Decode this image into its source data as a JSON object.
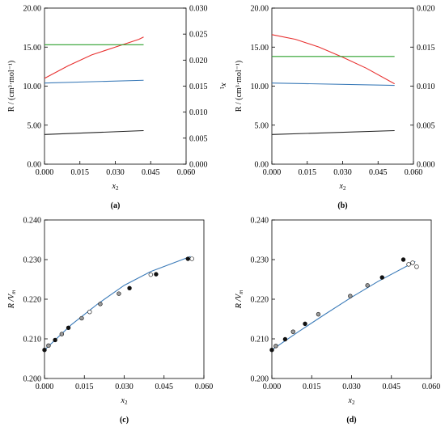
{
  "chart_data": [
    {
      "type": "line",
      "panel_label": "(a)",
      "xlabel_main": "x",
      "xlabel_sub": "2",
      "ylabel": "R / (cm³·mol⁻¹)",
      "y2label_main": "x",
      "y2label_sub": "1",
      "xlim": [
        0.0,
        0.06
      ],
      "ylim": [
        0.0,
        20.0
      ],
      "y2lim": [
        0.0,
        0.03
      ],
      "xticks": [
        "0.000",
        "0.015",
        "0.030",
        "0.045",
        "0.060"
      ],
      "yticks": [
        "0.00",
        "5.00",
        "10.00",
        "15.00",
        "20.00"
      ],
      "y2ticks": [
        "0.000",
        "0.005",
        "0.010",
        "0.015",
        "0.020",
        "0.025",
        "0.030"
      ],
      "series": [
        {
          "color": "#e8302f",
          "axis": "left",
          "x": [
            0.0,
            0.01,
            0.02,
            0.03,
            0.04,
            0.042
          ],
          "y": [
            11.0,
            12.6,
            14.0,
            15.0,
            16.0,
            16.3
          ]
        },
        {
          "color": "#2ca02c",
          "axis": "left",
          "x": [
            0.0,
            0.042
          ],
          "y": [
            15.3,
            15.3
          ]
        },
        {
          "color": "#3a7ab8",
          "axis": "left",
          "x": [
            0.0,
            0.042
          ],
          "y": [
            10.4,
            10.75
          ]
        },
        {
          "color": "#222222",
          "axis": "left",
          "x": [
            0.0,
            0.042
          ],
          "y": [
            3.8,
            4.3
          ]
        }
      ]
    },
    {
      "type": "line",
      "panel_label": "(b)",
      "xlabel_main": "x",
      "xlabel_sub": "2",
      "ylabel": "R / (cm³·mol⁻¹)",
      "y2label_main": "x",
      "y2label_sub": "1",
      "xlim": [
        0.0,
        0.06
      ],
      "ylim": [
        0.0,
        20.0
      ],
      "y2lim": [
        0.0,
        0.02
      ],
      "xticks": [
        "0.000",
        "0.015",
        "0.030",
        "0.045",
        "0.060"
      ],
      "yticks": [
        "0.00",
        "5.00",
        "10.00",
        "15.00",
        "20.00"
      ],
      "y2ticks": [
        "0.000",
        "0.005",
        "0.010",
        "0.015",
        "0.020"
      ],
      "series": [
        {
          "color": "#e8302f",
          "axis": "left",
          "x": [
            0.0,
            0.01,
            0.02,
            0.03,
            0.04,
            0.052
          ],
          "y": [
            16.6,
            16.0,
            15.0,
            13.7,
            12.3,
            10.3
          ]
        },
        {
          "color": "#2ca02c",
          "axis": "left",
          "x": [
            0.0,
            0.052
          ],
          "y": [
            13.8,
            13.8
          ]
        },
        {
          "color": "#3a7ab8",
          "axis": "left",
          "x": [
            0.0,
            0.052
          ],
          "y": [
            10.4,
            10.1
          ]
        },
        {
          "color": "#222222",
          "axis": "left",
          "x": [
            0.0,
            0.052
          ],
          "y": [
            3.8,
            4.3
          ]
        }
      ]
    },
    {
      "type": "scatter",
      "panel_label": "(c)",
      "xlabel_main": "x",
      "xlabel_sub": "2",
      "ylabel_main": "R /V",
      "ylabel_sub": "m",
      "xlim": [
        0.0,
        0.06
      ],
      "ylim": [
        0.2,
        0.24
      ],
      "xticks": [
        "0.000",
        "0.015",
        "0.030",
        "0.045",
        "0.060"
      ],
      "yticks": [
        "0.200",
        "0.210",
        "0.220",
        "0.230",
        "0.240"
      ],
      "fit_line": {
        "color": "#3a7ab8",
        "x": [
          0.0,
          0.01,
          0.02,
          0.03,
          0.04,
          0.055
        ],
        "y": [
          0.2072,
          0.2135,
          0.2188,
          0.2235,
          0.227,
          0.2308
        ]
      },
      "points": [
        {
          "x": 0.0,
          "y": 0.2072,
          "style": "filled"
        },
        {
          "x": 0.0015,
          "y": 0.2083,
          "style": "half"
        },
        {
          "x": 0.004,
          "y": 0.2097,
          "style": "filled"
        },
        {
          "x": 0.0065,
          "y": 0.2112,
          "style": "half"
        },
        {
          "x": 0.009,
          "y": 0.2128,
          "style": "filled"
        },
        {
          "x": 0.014,
          "y": 0.2152,
          "style": "half"
        },
        {
          "x": 0.017,
          "y": 0.2168,
          "style": "open"
        },
        {
          "x": 0.021,
          "y": 0.2188,
          "style": "half"
        },
        {
          "x": 0.028,
          "y": 0.2214,
          "style": "half"
        },
        {
          "x": 0.032,
          "y": 0.2228,
          "style": "filled"
        },
        {
          "x": 0.042,
          "y": 0.2263,
          "style": "filled"
        },
        {
          "x": 0.04,
          "y": 0.2262,
          "style": "open"
        },
        {
          "x": 0.054,
          "y": 0.2302,
          "style": "filled"
        },
        {
          "x": 0.0555,
          "y": 0.2302,
          "style": "open"
        }
      ]
    },
    {
      "type": "scatter",
      "panel_label": "(d)",
      "xlabel_main": "x",
      "xlabel_sub": "2",
      "ylabel_main": "R /V",
      "ylabel_sub": "m",
      "xlim": [
        0.0,
        0.06
      ],
      "ylim": [
        0.2,
        0.24
      ],
      "xticks": [
        "0.000",
        "0.015",
        "0.030",
        "0.045",
        "0.060"
      ],
      "yticks": [
        "0.200",
        "0.210",
        "0.220",
        "0.230",
        "0.240"
      ],
      "fit_line": {
        "color": "#3a7ab8",
        "x": [
          0.0,
          0.01,
          0.02,
          0.03,
          0.04,
          0.054
        ],
        "y": [
          0.2072,
          0.2118,
          0.2162,
          0.2205,
          0.2245,
          0.2295
        ]
      },
      "points": [
        {
          "x": 0.0,
          "y": 0.2072,
          "style": "filled"
        },
        {
          "x": 0.0015,
          "y": 0.2082,
          "style": "half"
        },
        {
          "x": 0.005,
          "y": 0.2099,
          "style": "filled"
        },
        {
          "x": 0.008,
          "y": 0.2118,
          "style": "half"
        },
        {
          "x": 0.0125,
          "y": 0.2138,
          "style": "filled"
        },
        {
          "x": 0.0175,
          "y": 0.2162,
          "style": "half"
        },
        {
          "x": 0.0295,
          "y": 0.2208,
          "style": "half"
        },
        {
          "x": 0.036,
          "y": 0.2235,
          "style": "half"
        },
        {
          "x": 0.0415,
          "y": 0.2255,
          "style": "filled"
        },
        {
          "x": 0.0495,
          "y": 0.23,
          "style": "filled"
        },
        {
          "x": 0.0515,
          "y": 0.2288,
          "style": "open"
        },
        {
          "x": 0.053,
          "y": 0.2292,
          "style": "open"
        },
        {
          "x": 0.0545,
          "y": 0.2282,
          "style": "open"
        }
      ]
    }
  ]
}
